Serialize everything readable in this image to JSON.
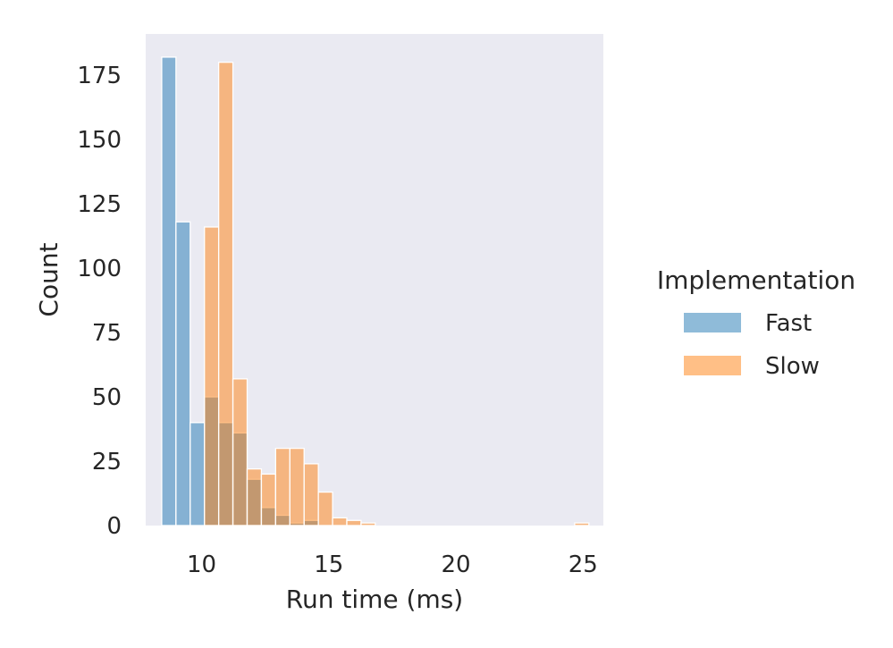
{
  "chart_data": {
    "type": "bar",
    "xlabel": "Run time (ms)",
    "ylabel": "Count",
    "xlim": [
      7.8,
      25.8
    ],
    "ylim": [
      0,
      191
    ],
    "xticks": [
      10,
      15,
      20,
      25
    ],
    "yticks": [
      0,
      25,
      50,
      75,
      100,
      125,
      150,
      175
    ],
    "bin_edges": [
      8.43,
      8.99,
      9.55,
      10.11,
      10.67,
      11.23,
      11.79,
      12.35,
      12.91,
      13.47,
      14.03,
      14.59,
      15.15,
      15.71,
      16.27,
      16.83,
      17.39,
      17.95,
      18.51,
      19.07,
      19.63,
      20.19,
      20.75,
      21.31,
      21.87,
      22.43,
      22.99,
      23.55,
      24.11,
      24.67,
      25.23
    ],
    "grid": false,
    "background": "#eaeaf2",
    "legend": {
      "title": "Implementation",
      "position": "right"
    },
    "series": [
      {
        "name": "Fast",
        "color": "#1f77b4",
        "values": [
          182,
          118,
          40,
          50,
          40,
          36,
          18,
          7,
          4,
          1,
          2,
          0,
          0,
          0,
          0,
          0,
          0,
          0,
          0,
          0,
          0,
          0,
          0,
          0,
          0,
          0,
          0,
          0,
          0,
          0
        ]
      },
      {
        "name": "Slow",
        "color": "#ff7f0e",
        "values": [
          0,
          0,
          0,
          116,
          180,
          57,
          22,
          20,
          30,
          30,
          24,
          13,
          3,
          2,
          1,
          0,
          0,
          0,
          0,
          0,
          0,
          0,
          0,
          0,
          0,
          0,
          0,
          0,
          0,
          1
        ]
      }
    ]
  }
}
